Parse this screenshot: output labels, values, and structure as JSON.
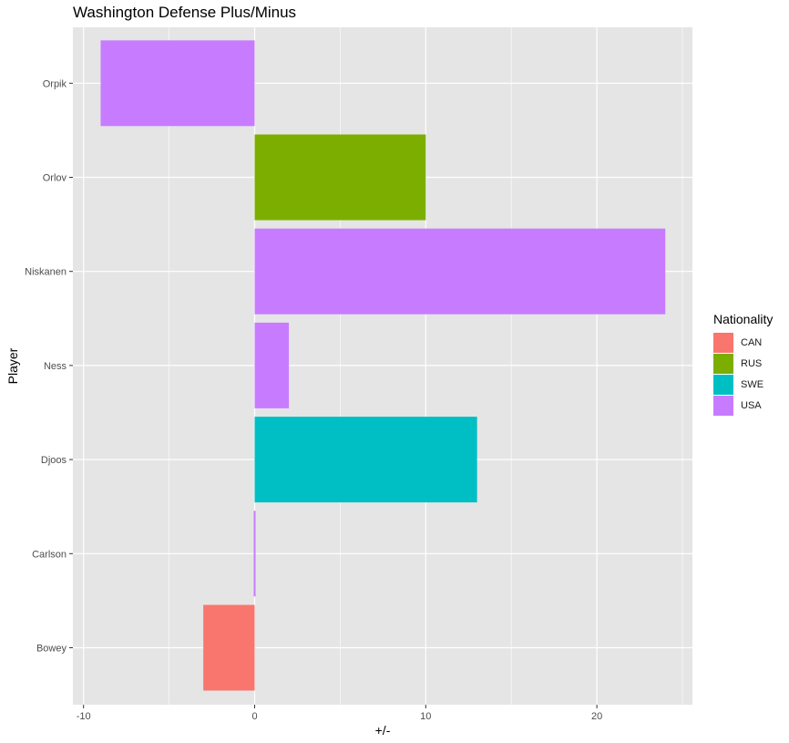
{
  "chart_data": {
    "type": "bar",
    "orientation": "horizontal",
    "title": "Washington Defense Plus/Minus",
    "xlabel": "+/-",
    "ylabel": "Player",
    "xlim": [
      -10,
      25
    ],
    "x_ticks": [
      -10,
      0,
      10,
      20
    ],
    "x_tick_labels": [
      "-10",
      "0",
      "10",
      "20"
    ],
    "grid": true,
    "categories": [
      "Bowey",
      "Carlson",
      "Djoos",
      "Ness",
      "Niskanen",
      "Orlov",
      "Orpik"
    ],
    "values": [
      -3,
      0,
      13,
      2,
      24,
      10,
      -9
    ],
    "nationality": [
      "CAN",
      "USA",
      "SWE",
      "USA",
      "USA",
      "RUS",
      "USA"
    ],
    "legend": {
      "title": "Nationality",
      "placement": "right",
      "entries": [
        {
          "label": "CAN",
          "color": "#F8766D"
        },
        {
          "label": "RUS",
          "color": "#7CAE00"
        },
        {
          "label": "SWE",
          "color": "#00BFC4"
        },
        {
          "label": "USA",
          "color": "#C77CFF"
        }
      ]
    },
    "colors": {
      "panel_background": "#E5E5E5",
      "grid_line": "#FFFFFF"
    }
  }
}
